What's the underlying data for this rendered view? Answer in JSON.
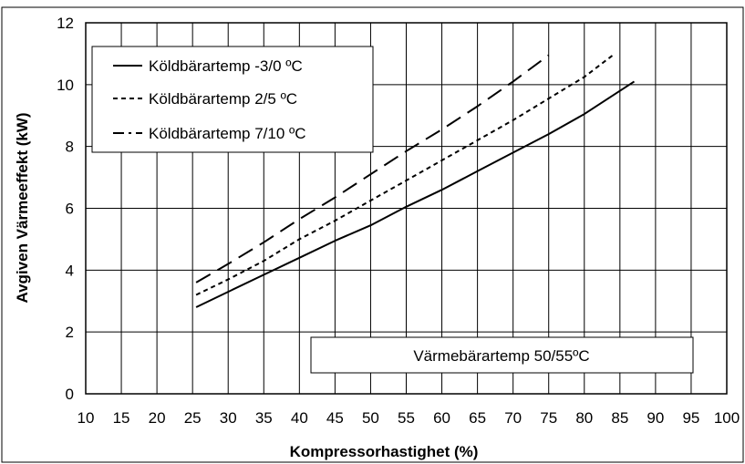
{
  "chart_data": {
    "type": "line",
    "title": "",
    "xlabel": "Kompressorhastighet (%)",
    "ylabel": "Avgiven Värmeeffekt (kW)",
    "xlim": [
      10,
      100
    ],
    "ylim": [
      0,
      12
    ],
    "x_ticks": [
      "10",
      "15",
      "20",
      "25",
      "30",
      "35",
      "40",
      "45",
      "50",
      "55",
      "60",
      "65",
      "70",
      "75",
      "80",
      "85",
      "90",
      "95",
      "100"
    ],
    "y_ticks": [
      "0",
      "2",
      "4",
      "6",
      "8",
      "10",
      "12"
    ],
    "grid": true,
    "legend_position": "top-left",
    "annotation": "Värmebärartemp 50/55ºC",
    "series": [
      {
        "name": "Köldbärartemp -3/0 ºC",
        "style": "solid",
        "points": [
          [
            25.5,
            2.8
          ],
          [
            30,
            3.3
          ],
          [
            35,
            3.85
          ],
          [
            40,
            4.4
          ],
          [
            45,
            4.95
          ],
          [
            50,
            5.45
          ],
          [
            55,
            6.05
          ],
          [
            60,
            6.6
          ],
          [
            65,
            7.2
          ],
          [
            70,
            7.8
          ],
          [
            75,
            8.4
          ],
          [
            80,
            9.05
          ],
          [
            87,
            10.1
          ]
        ]
      },
      {
        "name": "Köldbärartemp 2/5 ºC",
        "style": "short-dash",
        "points": [
          [
            25.5,
            3.2
          ],
          [
            30,
            3.7
          ],
          [
            35,
            4.3
          ],
          [
            40,
            5.0
          ],
          [
            45,
            5.6
          ],
          [
            50,
            6.25
          ],
          [
            55,
            6.9
          ],
          [
            60,
            7.55
          ],
          [
            65,
            8.2
          ],
          [
            70,
            8.85
          ],
          [
            75,
            9.55
          ],
          [
            80,
            10.25
          ],
          [
            84,
            10.95
          ]
        ]
      },
      {
        "name": "Köldbärartemp 7/10 ºC",
        "style": "long-dash",
        "points": [
          [
            25.5,
            3.6
          ],
          [
            30,
            4.2
          ],
          [
            35,
            4.9
          ],
          [
            40,
            5.65
          ],
          [
            45,
            6.35
          ],
          [
            50,
            7.1
          ],
          [
            55,
            7.85
          ],
          [
            60,
            8.55
          ],
          [
            65,
            9.3
          ],
          [
            70,
            10.1
          ],
          [
            75,
            10.95
          ]
        ]
      }
    ]
  }
}
